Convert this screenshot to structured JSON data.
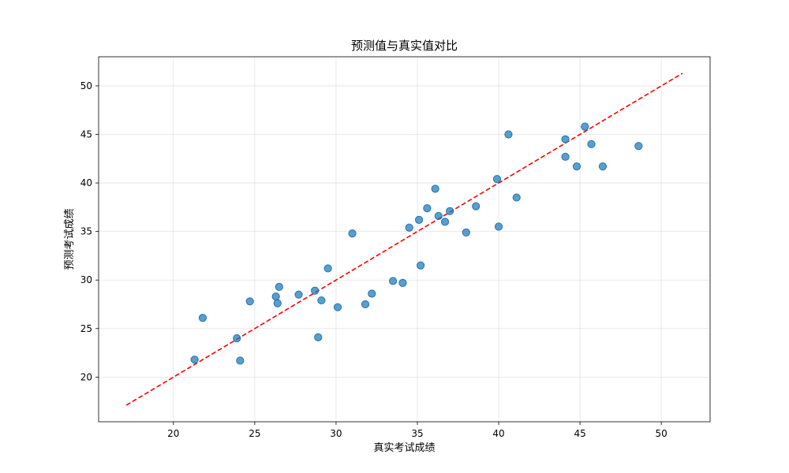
{
  "chart_data": {
    "type": "scatter",
    "title": "预测值与真实值对比",
    "xlabel": "真实考试成绩",
    "ylabel": "预测考试成绩",
    "xlim": [
      15.4,
      53.0
    ],
    "ylim": [
      15.4,
      53.0
    ],
    "xticks": [
      20,
      25,
      30,
      35,
      40,
      45,
      50
    ],
    "yticks": [
      20,
      25,
      30,
      35,
      40,
      45,
      50
    ],
    "grid": true,
    "series": [
      {
        "kind": "scatter",
        "color": "#1f77b4",
        "points": [
          [
            21.3,
            21.8
          ],
          [
            21.8,
            26.1
          ],
          [
            23.9,
            24.0
          ],
          [
            24.1,
            21.7
          ],
          [
            24.7,
            27.8
          ],
          [
            26.3,
            28.3
          ],
          [
            26.4,
            27.6
          ],
          [
            26.5,
            29.3
          ],
          [
            27.7,
            28.5
          ],
          [
            28.7,
            28.9
          ],
          [
            28.9,
            24.1
          ],
          [
            29.1,
            27.9
          ],
          [
            29.5,
            31.2
          ],
          [
            30.1,
            27.2
          ],
          [
            31.0,
            34.8
          ],
          [
            31.8,
            27.5
          ],
          [
            32.2,
            28.6
          ],
          [
            33.5,
            29.9
          ],
          [
            34.1,
            29.7
          ],
          [
            34.5,
            35.4
          ],
          [
            35.1,
            36.2
          ],
          [
            35.2,
            31.5
          ],
          [
            35.6,
            37.4
          ],
          [
            36.1,
            39.4
          ],
          [
            36.3,
            36.6
          ],
          [
            36.7,
            36.0
          ],
          [
            37.0,
            37.1
          ],
          [
            38.0,
            34.9
          ],
          [
            38.6,
            37.6
          ],
          [
            39.9,
            40.4
          ],
          [
            40.0,
            35.5
          ],
          [
            40.6,
            45.0
          ],
          [
            41.1,
            38.5
          ],
          [
            44.1,
            44.5
          ],
          [
            44.1,
            42.7
          ],
          [
            44.8,
            41.7
          ],
          [
            45.3,
            45.8
          ],
          [
            45.7,
            44.0
          ],
          [
            46.4,
            41.7
          ],
          [
            48.6,
            43.8
          ]
        ]
      },
      {
        "kind": "reference-line",
        "color": "#ff0000",
        "style": "dashed",
        "x": [
          17.1,
          51.3
        ],
        "y": [
          17.1,
          51.3
        ]
      }
    ]
  }
}
